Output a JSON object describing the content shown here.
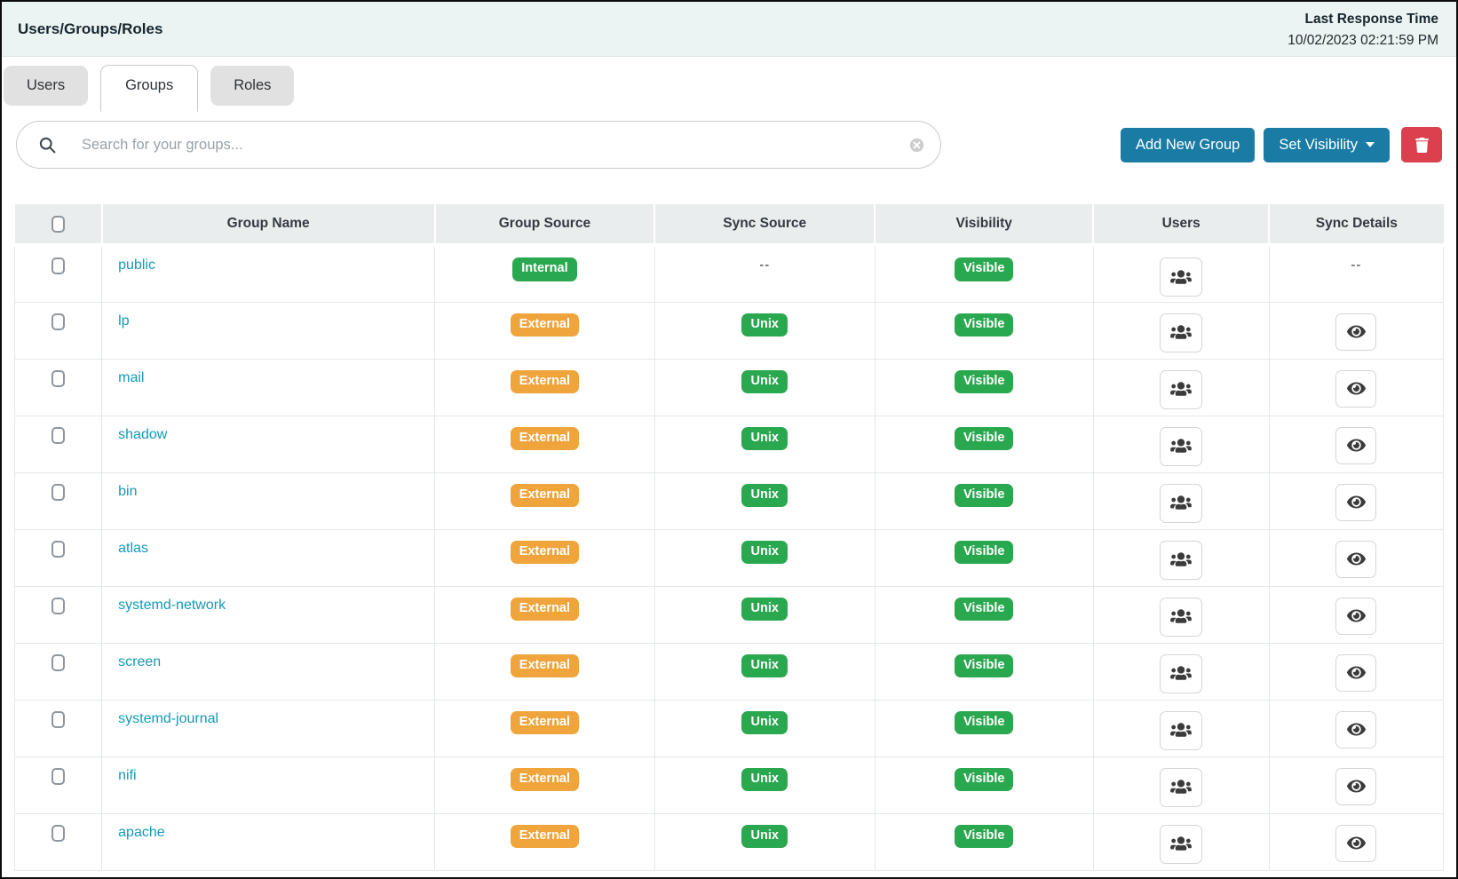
{
  "colors": {
    "accent_blue": "#1a7ca4",
    "danger_red": "#dc404f",
    "link_teal": "#119ab8",
    "badge_green": "#2aa84f",
    "badge_orange": "#f0a43c"
  },
  "header": {
    "title": "Users/Groups/Roles",
    "last_response_label": "Last Response Time",
    "last_response_value": "10/02/2023 02:21:59 PM"
  },
  "tabs": [
    {
      "label": "Users",
      "active": false
    },
    {
      "label": "Groups",
      "active": true
    },
    {
      "label": "Roles",
      "active": false
    }
  ],
  "toolbar": {
    "search_placeholder": "Search for your groups...",
    "add_new_group_label": "Add New Group",
    "set_visibility_label": "Set Visibility",
    "icons": {
      "search": "magnifier",
      "clear": "circle-x",
      "caret": "caret-down",
      "delete": "trash",
      "users": "user-group",
      "sync_details": "eye"
    }
  },
  "badge_colors": {
    "Internal": "green",
    "External": "orange",
    "Unix": "green",
    "Visible": "green"
  },
  "table": {
    "columns": [
      "",
      "Group Name",
      "Group Source",
      "Sync Source",
      "Visibility",
      "Users",
      "Sync Details"
    ],
    "empty_placeholder": "--",
    "rows": [
      {
        "name": "public",
        "group_source": "Internal",
        "sync_source": "",
        "visibility": "Visible",
        "has_users_button": true,
        "has_sync_details": false
      },
      {
        "name": "lp",
        "group_source": "External",
        "sync_source": "Unix",
        "visibility": "Visible",
        "has_users_button": true,
        "has_sync_details": true
      },
      {
        "name": "mail",
        "group_source": "External",
        "sync_source": "Unix",
        "visibility": "Visible",
        "has_users_button": true,
        "has_sync_details": true
      },
      {
        "name": "shadow",
        "group_source": "External",
        "sync_source": "Unix",
        "visibility": "Visible",
        "has_users_button": true,
        "has_sync_details": true
      },
      {
        "name": "bin",
        "group_source": "External",
        "sync_source": "Unix",
        "visibility": "Visible",
        "has_users_button": true,
        "has_sync_details": true
      },
      {
        "name": "atlas",
        "group_source": "External",
        "sync_source": "Unix",
        "visibility": "Visible",
        "has_users_button": true,
        "has_sync_details": true
      },
      {
        "name": "systemd-network",
        "group_source": "External",
        "sync_source": "Unix",
        "visibility": "Visible",
        "has_users_button": true,
        "has_sync_details": true
      },
      {
        "name": "screen",
        "group_source": "External",
        "sync_source": "Unix",
        "visibility": "Visible",
        "has_users_button": true,
        "has_sync_details": true
      },
      {
        "name": "systemd-journal",
        "group_source": "External",
        "sync_source": "Unix",
        "visibility": "Visible",
        "has_users_button": true,
        "has_sync_details": true
      },
      {
        "name": "nifi",
        "group_source": "External",
        "sync_source": "Unix",
        "visibility": "Visible",
        "has_users_button": true,
        "has_sync_details": true
      },
      {
        "name": "apache",
        "group_source": "External",
        "sync_source": "Unix",
        "visibility": "Visible",
        "has_users_button": true,
        "has_sync_details": true
      }
    ]
  }
}
